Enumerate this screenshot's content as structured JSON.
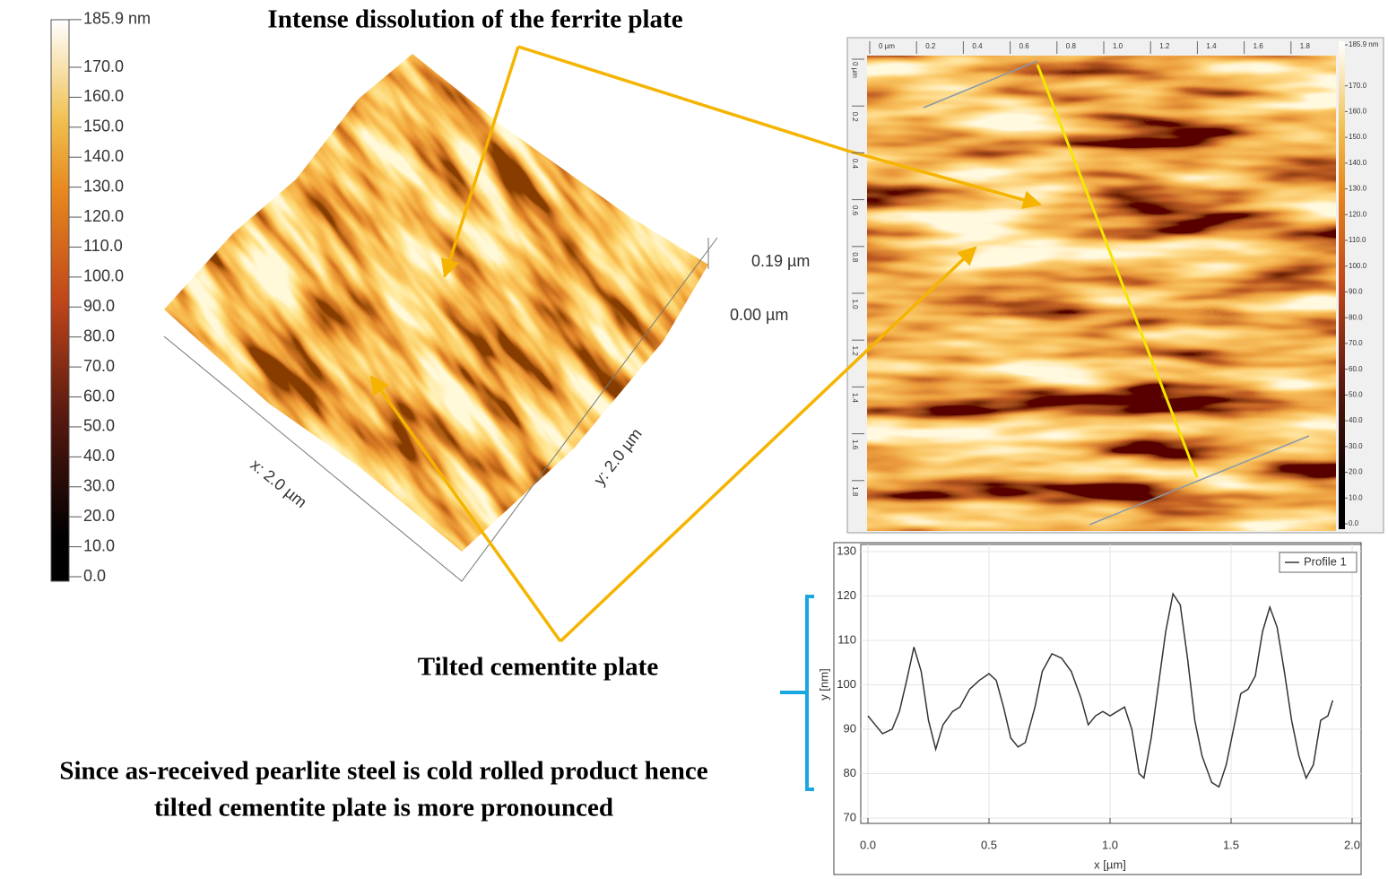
{
  "colorbar": {
    "ticks": [
      {
        "value": 185.9,
        "label": "185.9 nm"
      },
      {
        "value": 170,
        "label": "170.0"
      },
      {
        "value": 160,
        "label": "160.0"
      },
      {
        "value": 150,
        "label": "150.0"
      },
      {
        "value": 140,
        "label": "140.0"
      },
      {
        "value": 130,
        "label": "130.0"
      },
      {
        "value": 120,
        "label": "120.0"
      },
      {
        "value": 110,
        "label": "110.0"
      },
      {
        "value": 100,
        "label": "100.0"
      },
      {
        "value": 90,
        "label": "90.0"
      },
      {
        "value": 80,
        "label": "80.0"
      },
      {
        "value": 70,
        "label": "70.0"
      },
      {
        "value": 60,
        "label": "60.0"
      },
      {
        "value": 50,
        "label": "50.0"
      },
      {
        "value": 40,
        "label": "40.0"
      },
      {
        "value": 30,
        "label": "30.0"
      },
      {
        "value": 20,
        "label": "20.0"
      },
      {
        "value": 10,
        "label": "10.0"
      },
      {
        "value": 0,
        "label": "0.0"
      }
    ]
  },
  "surface3d": {
    "z_top": "0.19 µm",
    "z_bottom": "0.00 µm",
    "x_label": "x: 2.0 µm",
    "y_label": "y: 2.0 µm"
  },
  "afm_image": {
    "x_ruler": [
      "0 µm",
      "0.2",
      "0.4",
      "0.6",
      "0.8",
      "1.0",
      "1.2",
      "1.4",
      "1.6",
      "1.8"
    ],
    "y_ruler": [
      "0 µm",
      "0.2",
      "0.4",
      "0.6",
      "0.8",
      "1.0",
      "1.2",
      "1.4",
      "1.6",
      "1.8"
    ]
  },
  "annotations": {
    "ferrite": "Intense dissolution of the ferrite plate",
    "cementite": "Tilted cementite plate",
    "note_line1": "Since as-received pearlite steel is cold rolled product hence",
    "note_line2": "tilted cementite plate is more pronounced"
  },
  "chart_data": {
    "type": "line",
    "xlabel": "x [µm]",
    "ylabel": "y [nm]",
    "x": [
      0,
      0.03,
      0.06,
      0.1,
      0.13,
      0.16,
      0.19,
      0.22,
      0.25,
      0.28,
      0.31,
      0.35,
      0.38,
      0.42,
      0.46,
      0.5,
      0.53,
      0.56,
      0.59,
      0.62,
      0.65,
      0.69,
      0.72,
      0.76,
      0.8,
      0.84,
      0.88,
      0.91,
      0.94,
      0.97,
      1.0,
      1.03,
      1.06,
      1.09,
      1.12,
      1.14,
      1.17,
      1.2,
      1.23,
      1.26,
      1.29,
      1.32,
      1.35,
      1.38,
      1.42,
      1.45,
      1.48,
      1.51,
      1.54,
      1.57,
      1.6,
      1.63,
      1.66,
      1.69,
      1.72,
      1.75,
      1.78,
      1.81,
      1.84,
      1.87,
      1.9,
      1.92
    ],
    "series": [
      {
        "name": "Profile 1",
        "color": "#333333",
        "values": [
          93,
          91,
          89,
          90,
          94,
          101,
          108.5,
          103,
          92,
          85.5,
          91,
          94,
          95,
          99,
          101,
          102.5,
          101,
          95,
          88,
          86,
          87,
          95,
          103,
          107,
          106,
          103,
          97,
          91,
          93,
          94,
          93,
          94,
          95,
          90,
          80,
          79,
          88,
          100,
          112,
          120.5,
          118,
          106,
          92,
          84,
          78,
          77,
          82,
          90,
          98,
          99,
          102,
          112,
          117.5,
          113,
          103,
          92,
          84,
          79,
          82,
          92,
          93,
          96.5
        ]
      }
    ],
    "xlim": [
      0,
      2
    ],
    "ylim": [
      70,
      130
    ],
    "xticks": [
      {
        "value": 0,
        "label": "0.0"
      },
      0.5,
      {
        "value": 1,
        "label": "1.0"
      },
      1.5,
      {
        "value": 2,
        "label": "2.0"
      }
    ],
    "yticks": [
      70,
      80,
      90,
      100,
      110,
      120,
      130
    ],
    "grid": true,
    "legend": "upper right"
  }
}
